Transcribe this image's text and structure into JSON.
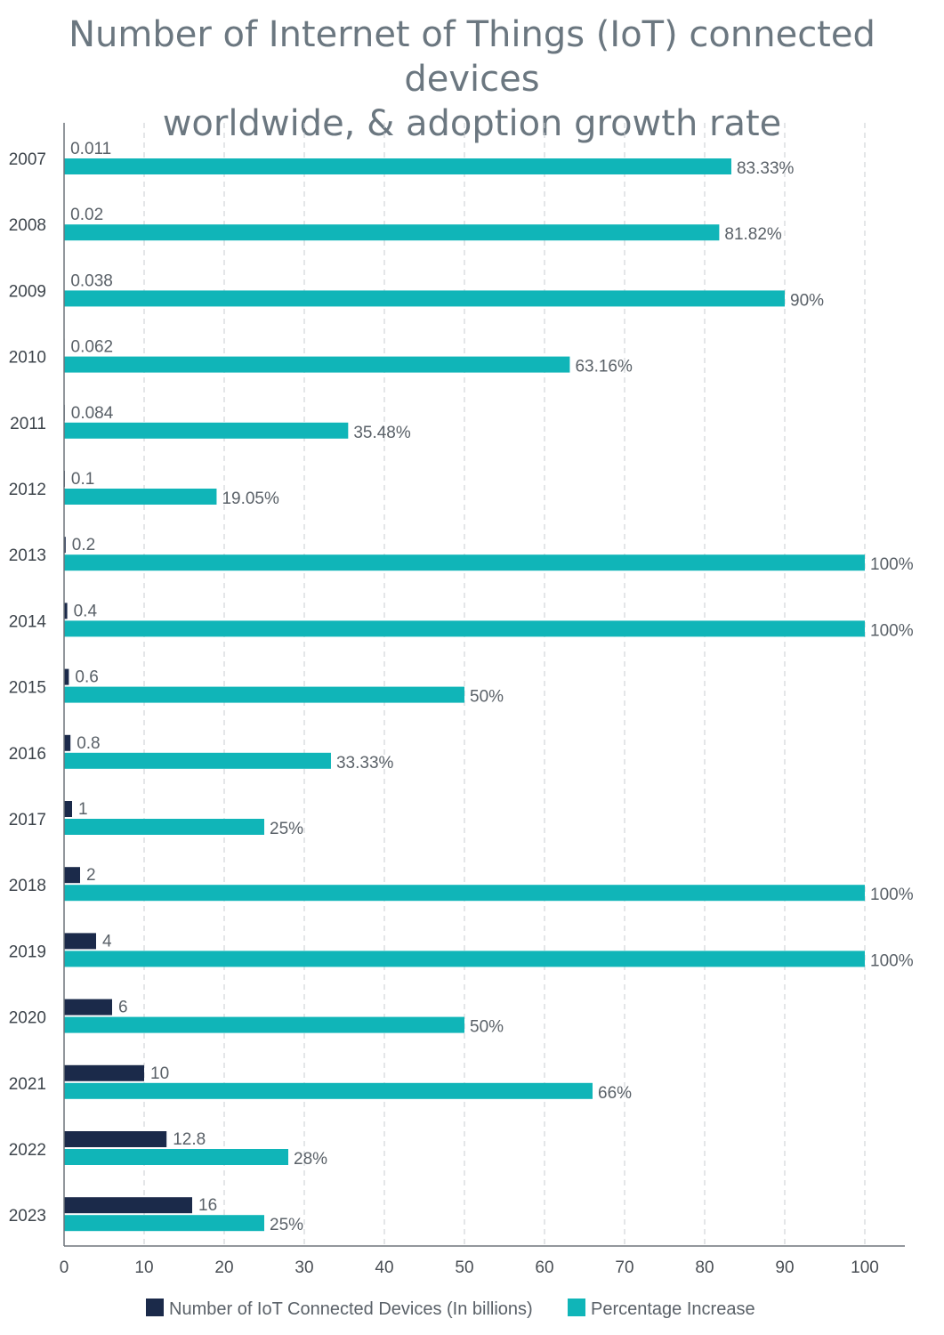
{
  "chart_data": {
    "type": "bar",
    "orientation": "horizontal",
    "title_lines": [
      "Number of Internet of Things (IoT) connected devices",
      "worldwide, & adoption growth rate"
    ],
    "categories": [
      "2007",
      "2008",
      "2009",
      "2010",
      "2011",
      "2012",
      "2013",
      "2014",
      "2015",
      "2016",
      "2017",
      "2018",
      "2019",
      "2020",
      "2021",
      "2022",
      "2023"
    ],
    "series": [
      {
        "name": "Number of IoT Connected Devices (In billions)",
        "color": "#1b2a4a",
        "values": [
          0.011,
          0.02,
          0.038,
          0.062,
          0.084,
          0.1,
          0.2,
          0.4,
          0.6,
          0.8,
          1,
          2,
          4,
          6,
          10,
          12.8,
          16
        ],
        "labels": [
          "0.011",
          "0.02",
          "0.038",
          "0.062",
          "0.084",
          "0.1",
          "0.2",
          "0.4",
          "0.6",
          "0.8",
          "1",
          "2",
          "4",
          "6",
          "10",
          "12.8",
          "16"
        ]
      },
      {
        "name": "Percentage Increase",
        "color": "#10b5b8",
        "values": [
          83.33,
          81.82,
          90,
          63.16,
          35.48,
          19.05,
          100,
          100,
          50,
          33.33,
          25,
          100,
          100,
          50,
          66,
          28,
          25
        ],
        "labels": [
          "83.33%",
          "81.82%",
          "90%",
          "63.16%",
          "35.48%",
          "19.05%",
          "100%",
          "100%",
          "50%",
          "33.33%",
          "25%",
          "100%",
          "100%",
          "50%",
          "66%",
          "28%",
          "25%"
        ]
      }
    ],
    "xlim": [
      0,
      100
    ],
    "xticks": [
      0,
      10,
      20,
      30,
      40,
      50,
      60,
      70,
      80,
      90,
      100
    ],
    "grid": "vertical dashed",
    "legend_position": "bottom"
  }
}
